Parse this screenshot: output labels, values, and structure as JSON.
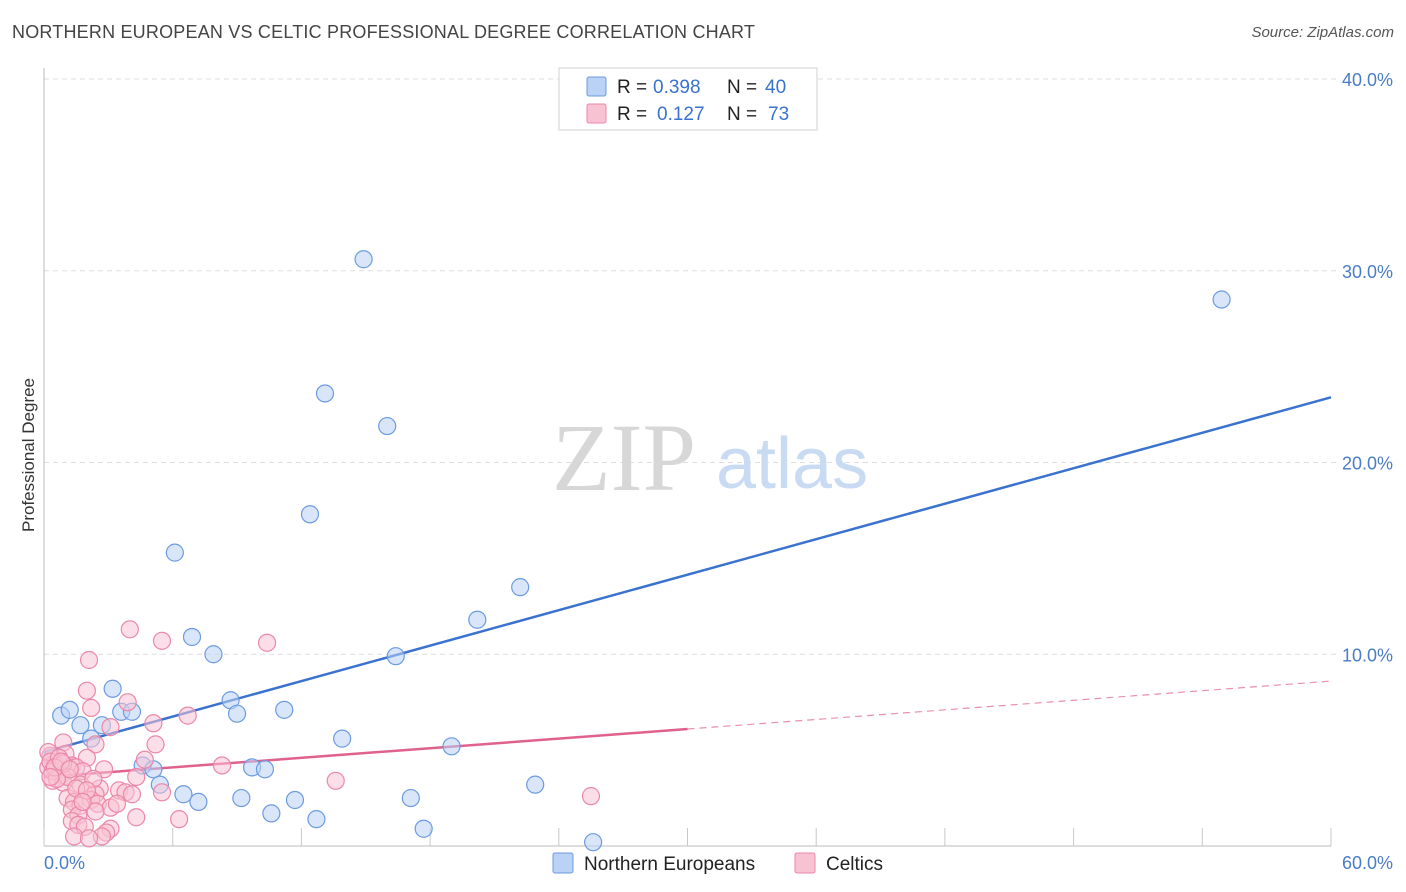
{
  "title": "NORTHERN EUROPEAN VS CELTIC PROFESSIONAL DEGREE CORRELATION CHART",
  "source": "Source: ZipAtlas.com",
  "watermark": {
    "zip": "ZIP",
    "atlas": "atlas"
  },
  "colors": {
    "blue": "#3a72cf",
    "blue_fill": "#b9d2f5",
    "blue_stroke": "#6c9be0",
    "pink": "#e0608e",
    "pink_fill": "#f7c3d3",
    "pink_stroke": "#ec87a8",
    "tick": "#4a7cc7",
    "grid": "#dddddd"
  },
  "legend": {
    "rows": [
      {
        "r_label": "R =",
        "r_value": "0.398",
        "n_label": "N =",
        "n_value": "40"
      },
      {
        "r_label": "R =",
        "r_value": "0.127",
        "n_label": "N =",
        "n_value": "73"
      }
    ]
  },
  "chart_data": {
    "type": "scatter",
    "title": "NORTHERN EUROPEAN VS CELTIC PROFESSIONAL DEGREE CORRELATION CHART",
    "xlabel": "",
    "ylabel": "Professional Degree",
    "xlim": [
      0,
      60
    ],
    "ylim": [
      0,
      40
    ],
    "x_tick_labels": [
      "0.0%",
      "60.0%"
    ],
    "y_ticks": [
      10,
      20,
      30,
      40
    ],
    "y_tick_labels": [
      "10.0%",
      "20.0%",
      "30.0%",
      "40.0%"
    ],
    "legend_position": "top-center",
    "series": [
      {
        "name": "Northern Europeans",
        "color": "#3a72cf",
        "trend": {
          "x0": 0,
          "y0": 4.9,
          "x1": 60,
          "y1": 23.4,
          "dashed_from": null
        },
        "points": [
          [
            14.9,
            30.6
          ],
          [
            54.9,
            28.5
          ],
          [
            13.1,
            23.6
          ],
          [
            16.0,
            21.9
          ],
          [
            12.4,
            17.3
          ],
          [
            6.1,
            15.3
          ],
          [
            22.2,
            13.5
          ],
          [
            20.2,
            11.8
          ],
          [
            6.9,
            10.9
          ],
          [
            7.9,
            10.0
          ],
          [
            16.4,
            9.9
          ],
          [
            3.2,
            8.2
          ],
          [
            0.8,
            6.8
          ],
          [
            1.2,
            7.1
          ],
          [
            8.7,
            7.6
          ],
          [
            3.6,
            7.0
          ],
          [
            4.1,
            7.0
          ],
          [
            1.7,
            6.3
          ],
          [
            2.7,
            6.3
          ],
          [
            11.2,
            7.1
          ],
          [
            9.0,
            6.9
          ],
          [
            2.2,
            5.6
          ],
          [
            13.9,
            5.6
          ],
          [
            19.0,
            5.2
          ],
          [
            4.6,
            4.2
          ],
          [
            9.7,
            4.1
          ],
          [
            10.3,
            4.0
          ],
          [
            5.1,
            4.0
          ],
          [
            5.4,
            3.2
          ],
          [
            22.9,
            3.2
          ],
          [
            6.5,
            2.7
          ],
          [
            7.2,
            2.3
          ],
          [
            9.2,
            2.5
          ],
          [
            11.7,
            2.4
          ],
          [
            17.1,
            2.5
          ],
          [
            10.6,
            1.7
          ],
          [
            12.7,
            1.4
          ],
          [
            17.7,
            0.9
          ],
          [
            25.6,
            0.2
          ],
          [
            0.4,
            4.6
          ]
        ]
      },
      {
        "name": "Celtics",
        "color": "#e0608e",
        "trend": {
          "x0": 0,
          "y0": 3.6,
          "x1": 60,
          "y1": 8.6,
          "dashed_from": 30
        },
        "points": [
          [
            4.0,
            11.3
          ],
          [
            5.5,
            10.7
          ],
          [
            10.4,
            10.6
          ],
          [
            2.1,
            9.7
          ],
          [
            2.0,
            8.1
          ],
          [
            3.9,
            7.5
          ],
          [
            2.2,
            7.2
          ],
          [
            6.7,
            6.8
          ],
          [
            5.1,
            6.4
          ],
          [
            3.1,
            6.2
          ],
          [
            0.9,
            5.4
          ],
          [
            5.2,
            5.3
          ],
          [
            2.4,
            5.3
          ],
          [
            1.0,
            4.8
          ],
          [
            0.3,
            4.7
          ],
          [
            2.0,
            4.6
          ],
          [
            4.7,
            4.5
          ],
          [
            0.5,
            4.3
          ],
          [
            1.3,
            4.2
          ],
          [
            8.3,
            4.2
          ],
          [
            1.5,
            4.1
          ],
          [
            0.2,
            4.1
          ],
          [
            0.6,
            4.0
          ],
          [
            2.8,
            4.0
          ],
          [
            1.8,
            3.9
          ],
          [
            0.8,
            3.7
          ],
          [
            4.3,
            3.6
          ],
          [
            13.6,
            3.4
          ],
          [
            0.4,
            3.4
          ],
          [
            0.9,
            3.3
          ],
          [
            1.7,
            3.2
          ],
          [
            2.6,
            3.0
          ],
          [
            3.5,
            2.9
          ],
          [
            3.8,
            2.8
          ],
          [
            5.5,
            2.8
          ],
          [
            2.4,
            2.7
          ],
          [
            4.1,
            2.7
          ],
          [
            25.5,
            2.6
          ],
          [
            1.1,
            2.5
          ],
          [
            2.2,
            2.4
          ],
          [
            1.4,
            2.3
          ],
          [
            2.5,
            2.2
          ],
          [
            1.7,
            2.1
          ],
          [
            3.1,
            2.0
          ],
          [
            1.3,
            1.9
          ],
          [
            2.4,
            1.8
          ],
          [
            1.6,
            1.6
          ],
          [
            4.3,
            1.5
          ],
          [
            6.3,
            1.4
          ],
          [
            1.3,
            1.3
          ],
          [
            1.6,
            1.1
          ],
          [
            1.9,
            1.0
          ],
          [
            3.1,
            0.9
          ],
          [
            2.9,
            0.7
          ],
          [
            1.4,
            0.5
          ],
          [
            2.7,
            0.5
          ],
          [
            2.1,
            0.4
          ],
          [
            0.2,
            4.9
          ],
          [
            0.3,
            4.4
          ],
          [
            0.7,
            4.6
          ],
          [
            0.4,
            3.9
          ],
          [
            1.1,
            3.6
          ],
          [
            0.6,
            3.5
          ],
          [
            0.9,
            4.3
          ],
          [
            1.5,
            3.0
          ],
          [
            2.3,
            3.5
          ],
          [
            3.4,
            2.2
          ],
          [
            2.0,
            2.9
          ],
          [
            0.5,
            4.1
          ],
          [
            0.8,
            4.4
          ],
          [
            1.2,
            4.0
          ],
          [
            0.3,
            3.6
          ],
          [
            1.8,
            2.3
          ]
        ]
      }
    ]
  }
}
